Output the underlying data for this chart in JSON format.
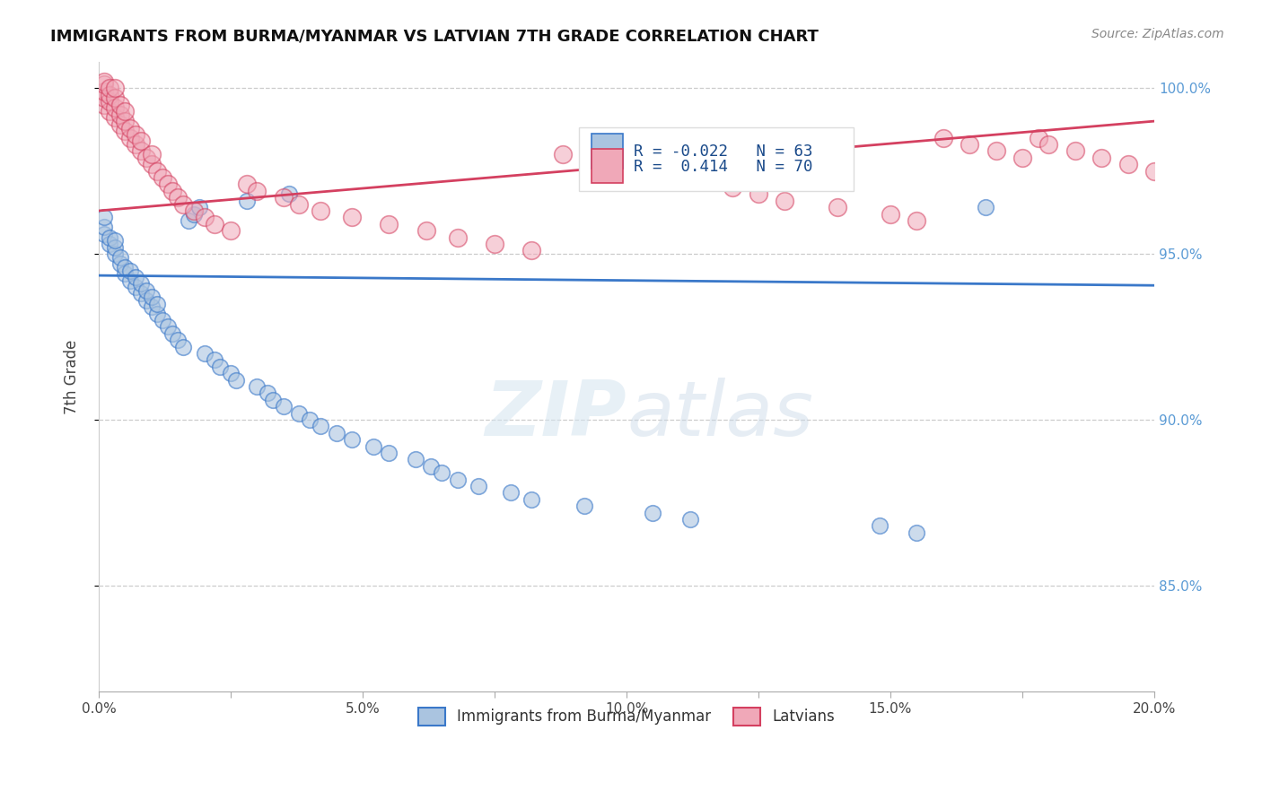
{
  "title": "IMMIGRANTS FROM BURMA/MYANMAR VS LATVIAN 7TH GRADE CORRELATION CHART",
  "source_text": "Source: ZipAtlas.com",
  "ylabel": "7th Grade",
  "xlim": [
    0.0,
    0.2
  ],
  "ylim": [
    0.818,
    1.008
  ],
  "ytick_labels": [
    "85.0%",
    "90.0%",
    "95.0%",
    "100.0%"
  ],
  "ytick_values": [
    0.85,
    0.9,
    0.95,
    1.0
  ],
  "xtick_labels": [
    "0.0%",
    "",
    "5.0%",
    "",
    "10.0%",
    "",
    "15.0%",
    "",
    "20.0%"
  ],
  "xtick_values": [
    0.0,
    0.025,
    0.05,
    0.075,
    0.1,
    0.125,
    0.15,
    0.175,
    0.2
  ],
  "legend_labels": [
    "Immigrants from Burma/Myanmar",
    "Latvians"
  ],
  "legend_r_values": [
    "-0.022",
    "0.414"
  ],
  "legend_n_values": [
    "63",
    "70"
  ],
  "blue_color": "#aac4e0",
  "pink_color": "#f0a8b8",
  "blue_line_color": "#3a78c9",
  "pink_line_color": "#d44060",
  "blue_trend": [
    0.9435,
    0.9405
  ],
  "pink_trend": [
    0.963,
    0.99
  ],
  "blue_x": [
    0.001,
    0.001,
    0.001,
    0.002,
    0.002,
    0.003,
    0.003,
    0.003,
    0.004,
    0.004,
    0.005,
    0.005,
    0.006,
    0.006,
    0.007,
    0.007,
    0.008,
    0.008,
    0.009,
    0.009,
    0.01,
    0.01,
    0.011,
    0.011,
    0.012,
    0.013,
    0.014,
    0.015,
    0.016,
    0.017,
    0.018,
    0.019,
    0.02,
    0.022,
    0.023,
    0.025,
    0.026,
    0.028,
    0.03,
    0.032,
    0.033,
    0.035,
    0.036,
    0.038,
    0.04,
    0.042,
    0.045,
    0.048,
    0.052,
    0.055,
    0.06,
    0.063,
    0.065,
    0.068,
    0.072,
    0.078,
    0.082,
    0.092,
    0.105,
    0.112,
    0.148,
    0.155,
    0.168
  ],
  "blue_y": [
    0.956,
    0.958,
    0.961,
    0.953,
    0.955,
    0.95,
    0.952,
    0.954,
    0.947,
    0.949,
    0.944,
    0.946,
    0.942,
    0.945,
    0.94,
    0.943,
    0.938,
    0.941,
    0.936,
    0.939,
    0.934,
    0.937,
    0.932,
    0.935,
    0.93,
    0.928,
    0.926,
    0.924,
    0.922,
    0.96,
    0.962,
    0.964,
    0.92,
    0.918,
    0.916,
    0.914,
    0.912,
    0.966,
    0.91,
    0.908,
    0.906,
    0.904,
    0.968,
    0.902,
    0.9,
    0.898,
    0.896,
    0.894,
    0.892,
    0.89,
    0.888,
    0.886,
    0.884,
    0.882,
    0.88,
    0.878,
    0.876,
    0.874,
    0.872,
    0.87,
    0.868,
    0.866,
    0.964
  ],
  "pink_x": [
    0.001,
    0.001,
    0.001,
    0.001,
    0.001,
    0.002,
    0.002,
    0.002,
    0.002,
    0.003,
    0.003,
    0.003,
    0.003,
    0.004,
    0.004,
    0.004,
    0.005,
    0.005,
    0.005,
    0.006,
    0.006,
    0.007,
    0.007,
    0.008,
    0.008,
    0.009,
    0.01,
    0.01,
    0.011,
    0.012,
    0.013,
    0.014,
    0.015,
    0.016,
    0.018,
    0.02,
    0.022,
    0.025,
    0.028,
    0.03,
    0.035,
    0.038,
    0.042,
    0.048,
    0.055,
    0.062,
    0.068,
    0.075,
    0.082,
    0.088,
    0.095,
    0.105,
    0.112,
    0.115,
    0.12,
    0.125,
    0.13,
    0.14,
    0.15,
    0.155,
    0.16,
    0.165,
    0.17,
    0.175,
    0.178,
    0.18,
    0.185,
    0.19,
    0.195,
    0.2
  ],
  "pink_y": [
    0.995,
    0.997,
    0.999,
    1.001,
    1.002,
    0.993,
    0.996,
    0.998,
    1.0,
    0.991,
    0.994,
    0.997,
    1.0,
    0.989,
    0.992,
    0.995,
    0.987,
    0.99,
    0.993,
    0.985,
    0.988,
    0.983,
    0.986,
    0.981,
    0.984,
    0.979,
    0.977,
    0.98,
    0.975,
    0.973,
    0.971,
    0.969,
    0.967,
    0.965,
    0.963,
    0.961,
    0.959,
    0.957,
    0.971,
    0.969,
    0.967,
    0.965,
    0.963,
    0.961,
    0.959,
    0.957,
    0.955,
    0.953,
    0.951,
    0.98,
    0.978,
    0.976,
    0.974,
    0.972,
    0.97,
    0.968,
    0.966,
    0.964,
    0.962,
    0.96,
    0.985,
    0.983,
    0.981,
    0.979,
    0.985,
    0.983,
    0.981,
    0.979,
    0.977,
    0.975
  ]
}
